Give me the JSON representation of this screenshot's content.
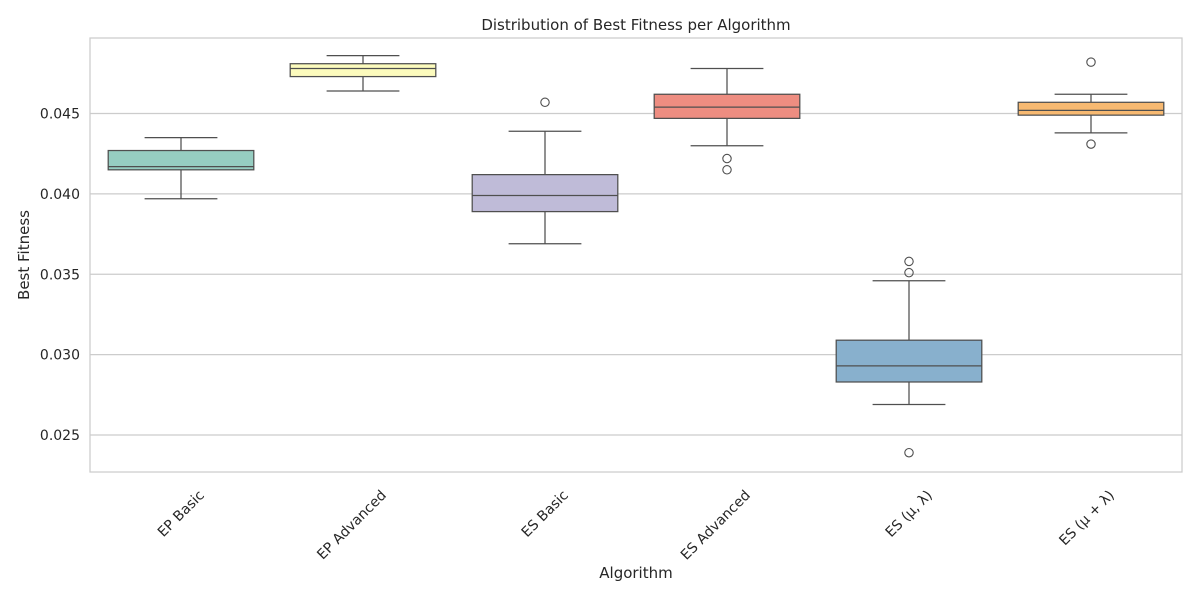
{
  "chart_data": {
    "type": "box",
    "title": "Distribution of Best Fitness per Algorithm",
    "xlabel": "Algorithm",
    "ylabel": "Best Fitness",
    "ylim": [
      0.0227,
      0.0497
    ],
    "yticks": [
      0.025,
      0.03,
      0.035,
      0.04,
      0.045
    ],
    "ytick_labels": [
      "0.025",
      "0.030",
      "0.035",
      "0.040",
      "0.045"
    ],
    "grid": true,
    "categories": [
      "EP Basic",
      "EP Advanced",
      "ES Basic",
      "ES Advanced",
      "ES (μ, λ)",
      "ES (μ + λ)"
    ],
    "boxes": [
      {
        "category": "EP Basic",
        "color": "#96cdc1",
        "whisker_low": 0.0397,
        "q1": 0.0415,
        "median": 0.0417,
        "q3": 0.0427,
        "whisker_high": 0.0435,
        "outliers": []
      },
      {
        "category": "EP Advanced",
        "color": "#fcfbbd",
        "whisker_low": 0.0464,
        "q1": 0.0473,
        "median": 0.0478,
        "q3": 0.0481,
        "whisker_high": 0.0486,
        "outliers": []
      },
      {
        "category": "ES Basic",
        "color": "#bfbbd8",
        "whisker_low": 0.0369,
        "q1": 0.0389,
        "median": 0.0399,
        "q3": 0.0412,
        "whisker_high": 0.0439,
        "outliers": [
          0.0457
        ]
      },
      {
        "category": "ES Advanced",
        "color": "#ee8d81",
        "whisker_low": 0.043,
        "q1": 0.0447,
        "median": 0.0454,
        "q3": 0.0462,
        "whisker_high": 0.0478,
        "outliers": [
          0.0422,
          0.0415
        ]
      },
      {
        "category": "ES (μ, λ)",
        "color": "#88b0cd",
        "whisker_low": 0.0269,
        "q1": 0.0283,
        "median": 0.0293,
        "q3": 0.0309,
        "whisker_high": 0.0346,
        "outliers": [
          0.0358,
          0.0351,
          0.0239
        ]
      },
      {
        "category": "ES (μ + λ)",
        "color": "#f7b971",
        "whisker_low": 0.0438,
        "q1": 0.0449,
        "median": 0.0452,
        "q3": 0.0457,
        "whisker_high": 0.0462,
        "outliers": [
          0.0482,
          0.0431
        ]
      }
    ]
  }
}
